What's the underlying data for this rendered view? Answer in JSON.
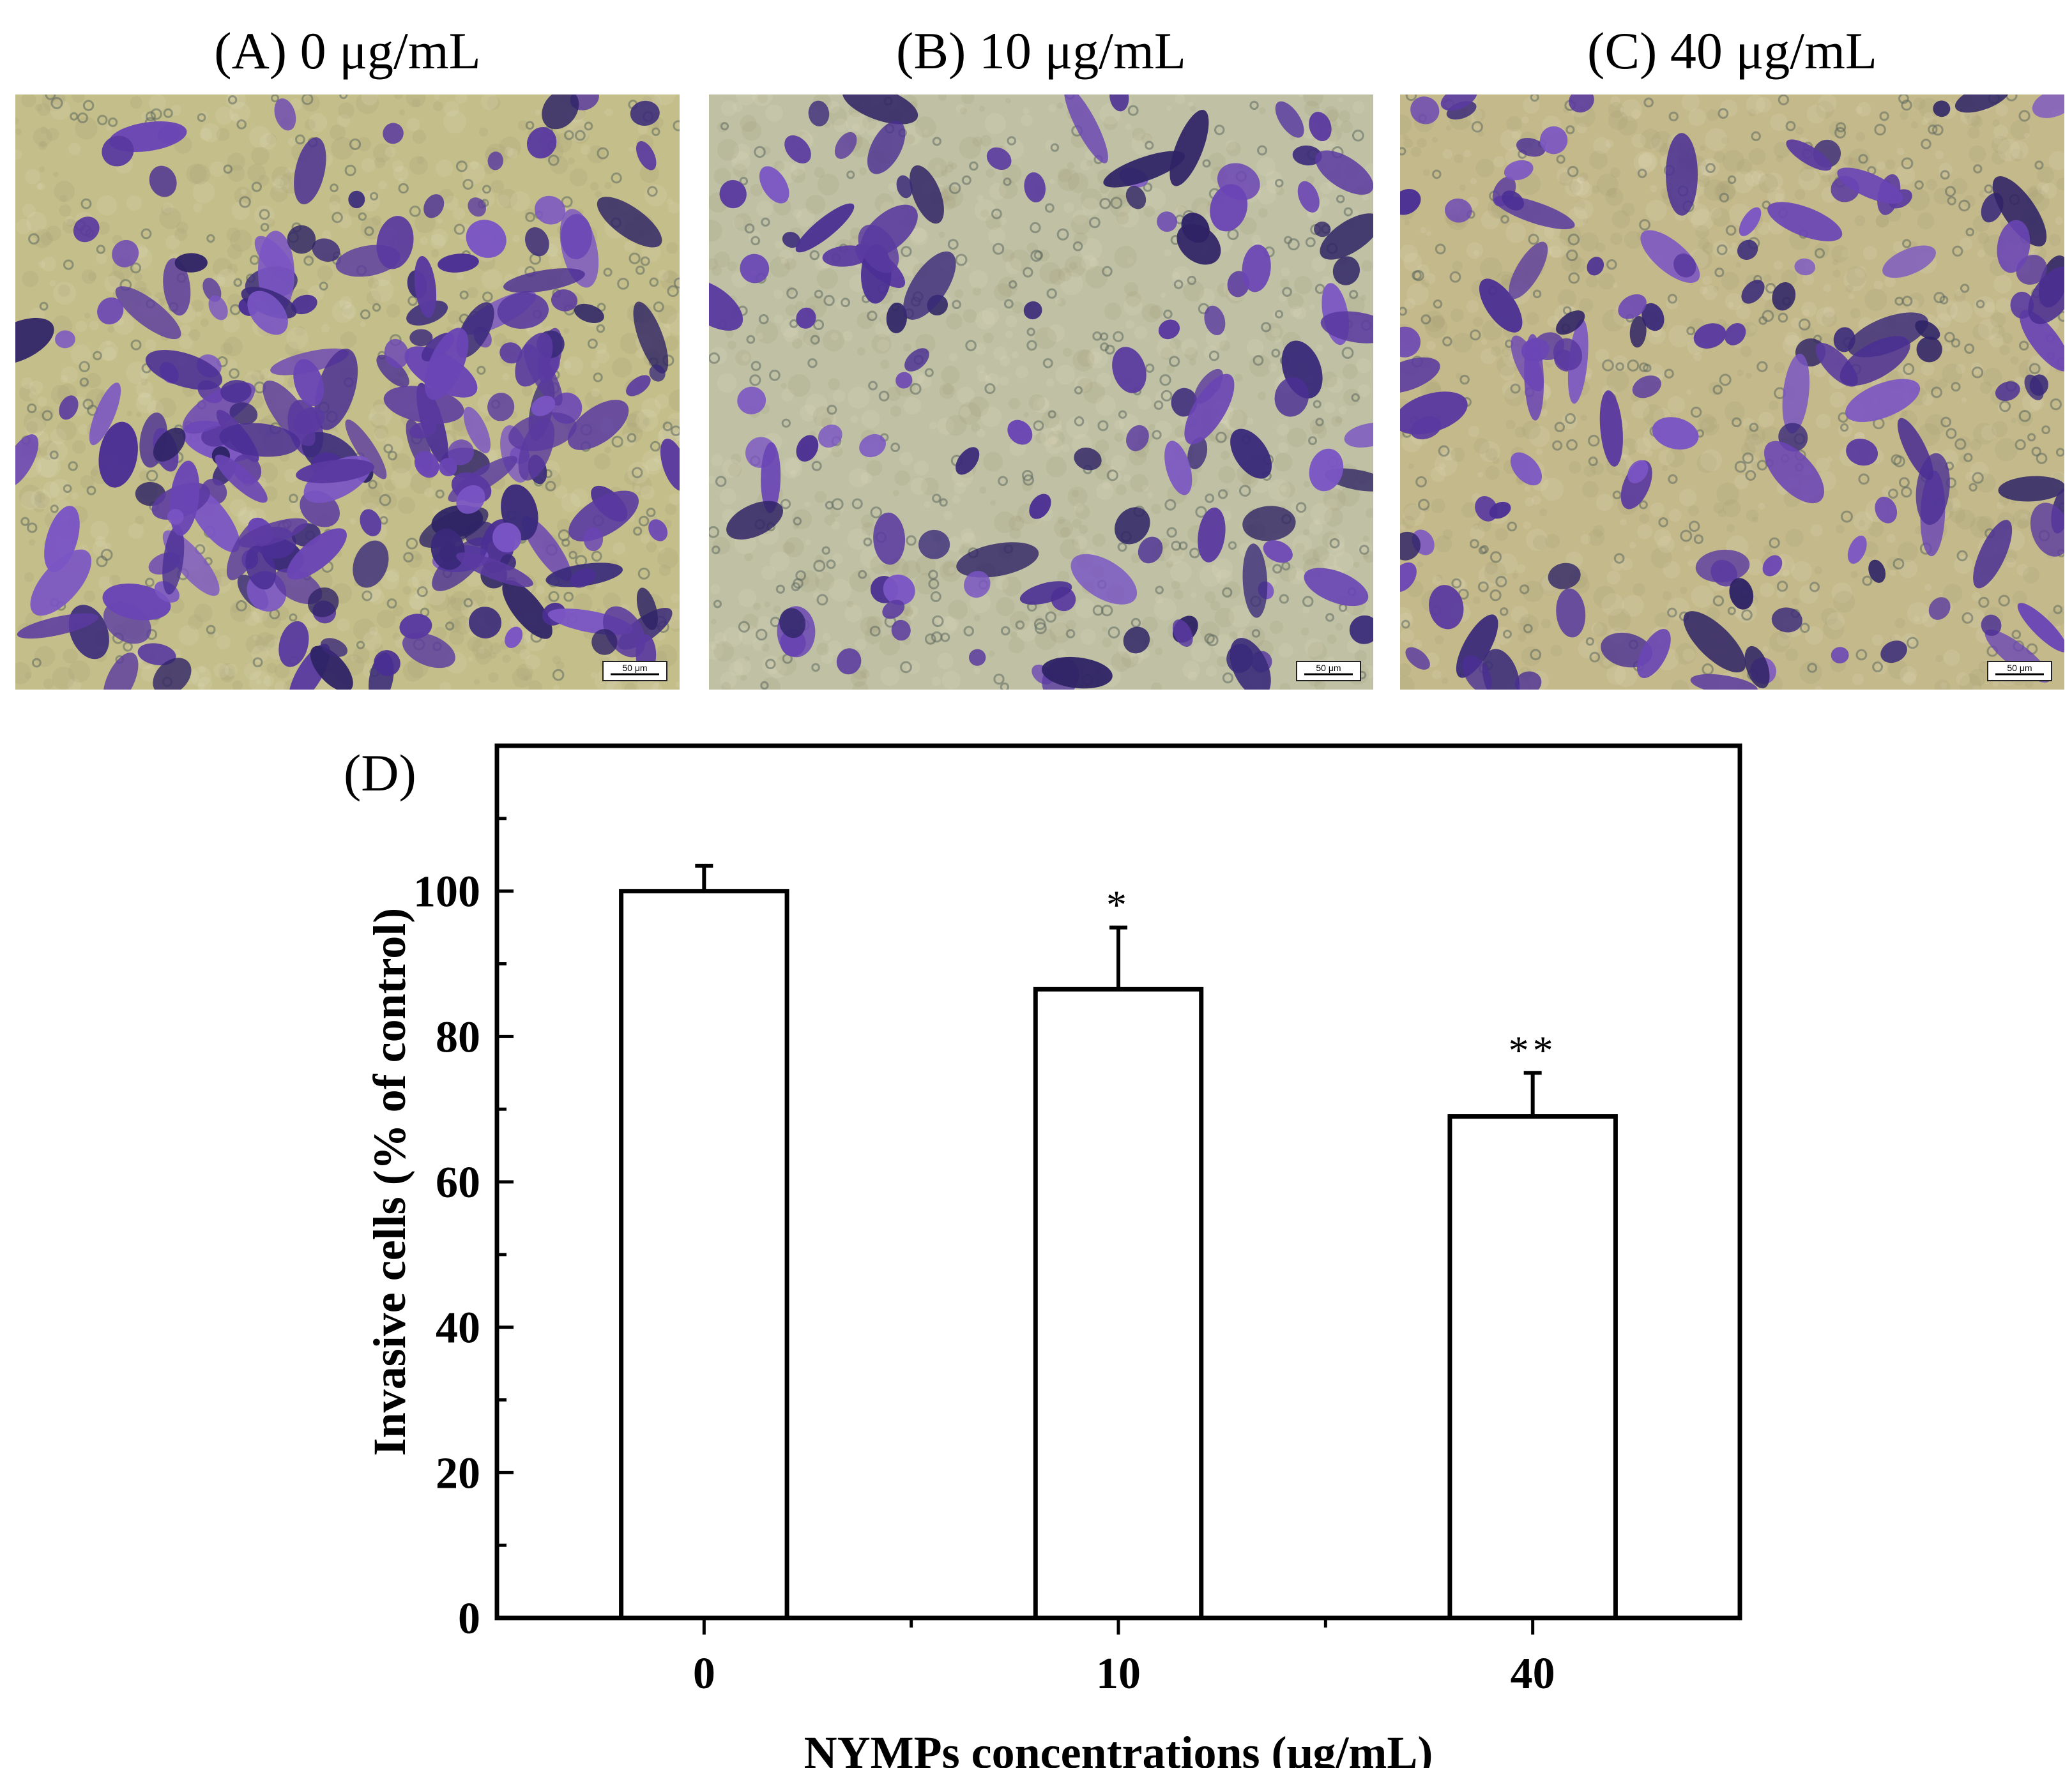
{
  "panels": [
    {
      "label": "(A) 0 μg/mL",
      "scale_bar": "50 μm"
    },
    {
      "label": "(B) 10 μg/mL",
      "scale_bar": "50 μm"
    },
    {
      "label": "(C) 40 μg/mL",
      "scale_bar": "50 μm"
    }
  ],
  "colors": {
    "cell_stain": "#5a3aa0",
    "background_a": "#c4be8a",
    "background_b": "#bfc0a4",
    "background_c": "#c3b98a"
  },
  "chart_data": {
    "type": "bar",
    "panel_label": "(D)",
    "categories": [
      "0",
      "10",
      "40"
    ],
    "values": [
      100,
      86.5,
      69
    ],
    "errors": [
      3.5,
      8.5,
      6
    ],
    "significance": [
      "",
      "*",
      "**"
    ],
    "xlabel": "NYMPs concentrations (μg/mL)",
    "ylabel": "Invasive cells (% of control)",
    "ylim": [
      0,
      120
    ],
    "yticks": [
      0,
      20,
      40,
      60,
      80,
      100
    ],
    "bar_fill": "#ffffff",
    "bar_stroke": "#000000",
    "grid": false,
    "legend": "none"
  }
}
